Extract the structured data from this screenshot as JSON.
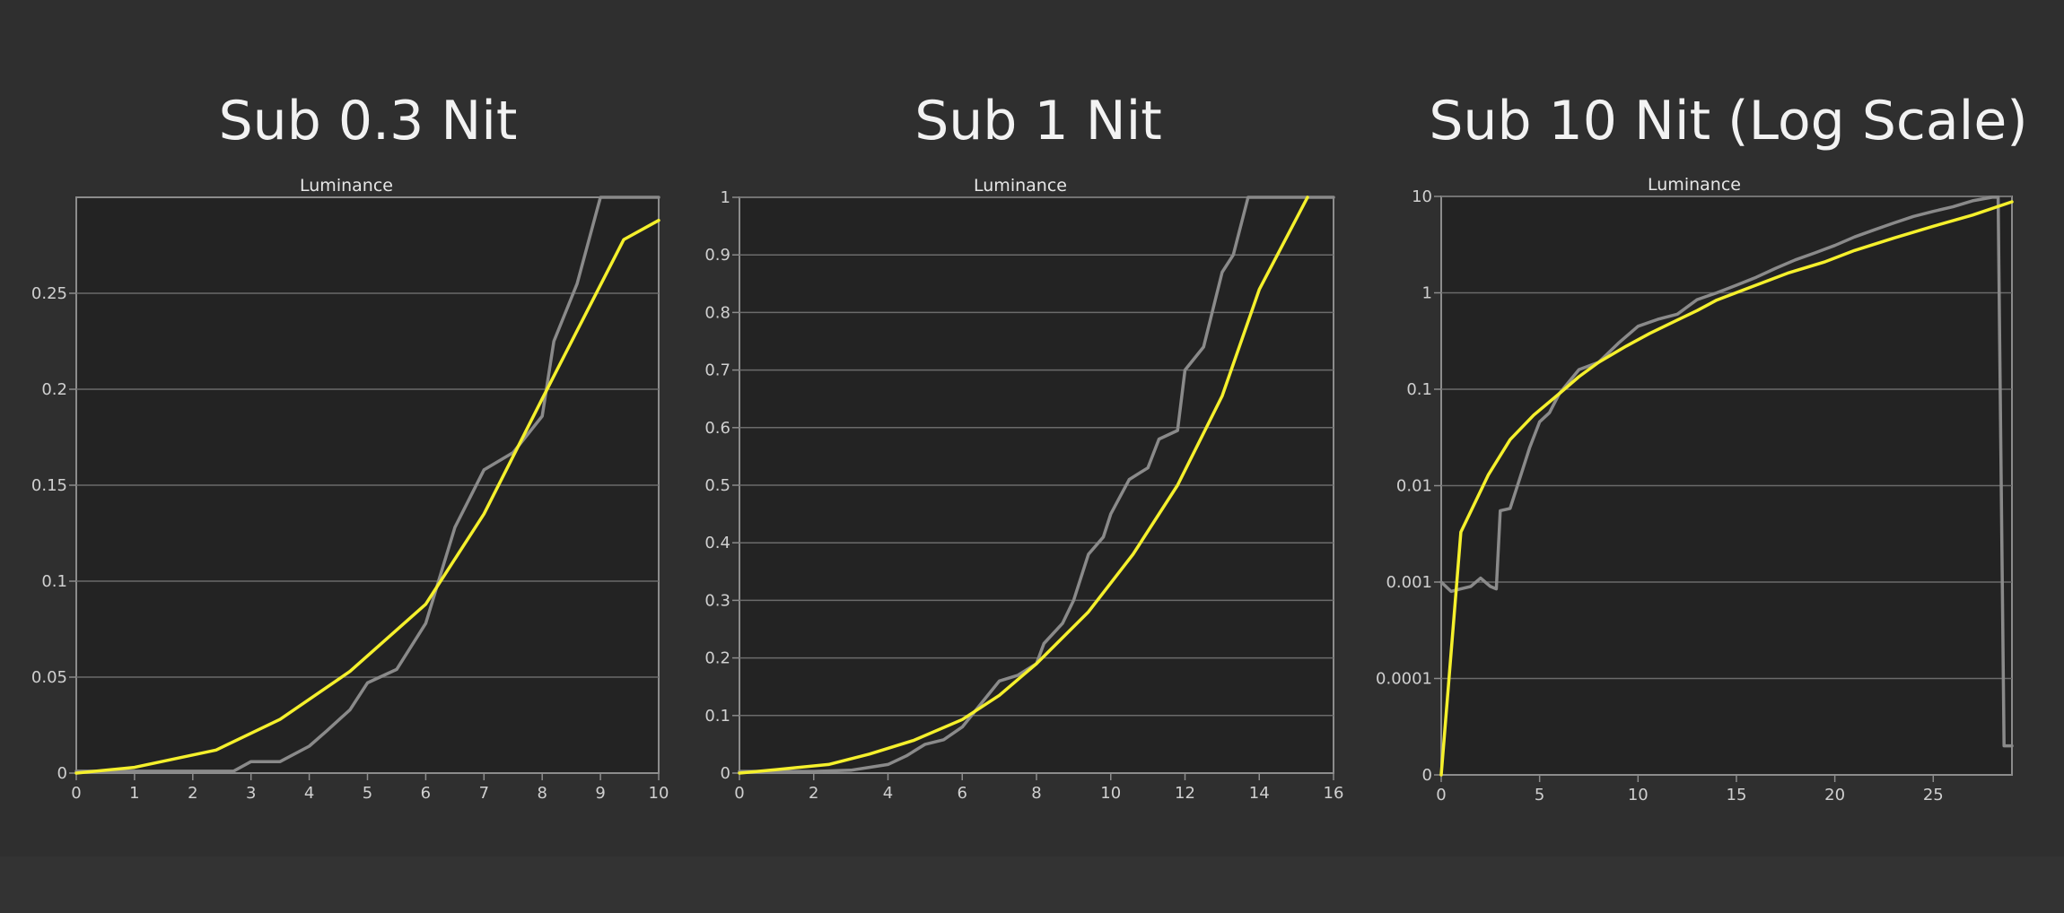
{
  "chart_data": [
    {
      "type": "line",
      "title": "Sub 0.3 Nit",
      "subtitle": "Luminance",
      "xlim": [
        0,
        10
      ],
      "ylim": [
        0,
        0.3
      ],
      "x_ticks": [
        0,
        1,
        2,
        3,
        4,
        5,
        6,
        7,
        8,
        9,
        10
      ],
      "x_tick_labels": [
        "0",
        "1",
        "2",
        "3",
        "4",
        "5",
        "6",
        "7",
        "8",
        "9",
        "10"
      ],
      "y_ticks": [
        0,
        0.05,
        0.1,
        0.15,
        0.2,
        0.25
      ],
      "y_tick_labels": [
        "0",
        "0.05",
        "0.1",
        "0.15",
        "0.2",
        "0.25"
      ],
      "grid": true,
      "series": [
        {
          "color": "#8a8a8a",
          "points": [
            [
              0,
              0.001
            ],
            [
              0.5,
              0.001
            ],
            [
              1,
              0.001
            ],
            [
              1.5,
              0.001
            ],
            [
              2,
              0.001
            ],
            [
              2.7,
              0.001
            ],
            [
              3,
              0.006
            ],
            [
              3.5,
              0.006
            ],
            [
              4,
              0.014
            ],
            [
              4.3,
              0.022
            ],
            [
              4.7,
              0.033
            ],
            [
              5,
              0.047
            ],
            [
              5.5,
              0.054
            ],
            [
              6,
              0.078
            ],
            [
              6.5,
              0.128
            ],
            [
              7,
              0.158
            ],
            [
              7.5,
              0.167
            ],
            [
              8,
              0.186
            ],
            [
              8.2,
              0.225
            ],
            [
              8.6,
              0.255
            ],
            [
              9,
              0.3
            ],
            [
              10,
              0.3
            ]
          ]
        },
        {
          "color": "#f5f02c",
          "points": [
            [
              0,
              0
            ],
            [
              1,
              0.003
            ],
            [
              2.4,
              0.012
            ],
            [
              3.5,
              0.028
            ],
            [
              4.7,
              0.053
            ],
            [
              6,
              0.088
            ],
            [
              7,
              0.135
            ],
            [
              8,
              0.195
            ],
            [
              9.4,
              0.278
            ],
            [
              10,
              0.288
            ]
          ]
        }
      ]
    },
    {
      "type": "line",
      "title": "Sub 1 Nit",
      "subtitle": "Luminance",
      "xlim": [
        0,
        16
      ],
      "ylim": [
        0,
        1
      ],
      "x_ticks": [
        0,
        2,
        4,
        6,
        8,
        10,
        12,
        14,
        16
      ],
      "x_tick_labels": [
        "0",
        "2",
        "4",
        "6",
        "8",
        "10",
        "12",
        "14",
        "16"
      ],
      "y_ticks": [
        0,
        0.1,
        0.2,
        0.3,
        0.4,
        0.5,
        0.6,
        0.7,
        0.8,
        0.9,
        1
      ],
      "y_tick_labels": [
        "0",
        "0.1",
        "0.2",
        "0.3",
        "0.4",
        "0.5",
        "0.6",
        "0.7",
        "0.8",
        "0.9",
        "1"
      ],
      "grid": true,
      "series": [
        {
          "color": "#8a8a8a",
          "points": [
            [
              0,
              0.003
            ],
            [
              2,
              0.003
            ],
            [
              3,
              0.005
            ],
            [
              3.5,
              0.01
            ],
            [
              4,
              0.015
            ],
            [
              4.5,
              0.03
            ],
            [
              5,
              0.05
            ],
            [
              5.5,
              0.058
            ],
            [
              6,
              0.08
            ],
            [
              6.5,
              0.12
            ],
            [
              7,
              0.16
            ],
            [
              7.5,
              0.17
            ],
            [
              8,
              0.19
            ],
            [
              8.2,
              0.225
            ],
            [
              8.7,
              0.26
            ],
            [
              9,
              0.3
            ],
            [
              9.4,
              0.38
            ],
            [
              9.8,
              0.41
            ],
            [
              10,
              0.45
            ],
            [
              10.5,
              0.51
            ],
            [
              11,
              0.53
            ],
            [
              11.3,
              0.58
            ],
            [
              11.8,
              0.595
            ],
            [
              12,
              0.7
            ],
            [
              12.5,
              0.74
            ],
            [
              13,
              0.87
            ],
            [
              13.3,
              0.9
            ],
            [
              13.7,
              1
            ],
            [
              16,
              1
            ]
          ]
        },
        {
          "color": "#f5f02c",
          "points": [
            [
              0,
              0
            ],
            [
              1,
              0.006
            ],
            [
              2.4,
              0.015
            ],
            [
              3.5,
              0.033
            ],
            [
              4.7,
              0.057
            ],
            [
              6,
              0.093
            ],
            [
              7,
              0.135
            ],
            [
              8,
              0.19
            ],
            [
              9.4,
              0.28
            ],
            [
              10.6,
              0.38
            ],
            [
              11.8,
              0.5
            ],
            [
              13,
              0.655
            ],
            [
              14,
              0.84
            ],
            [
              15.3,
              1
            ]
          ]
        }
      ]
    },
    {
      "type": "line",
      "title": "Sub 10 Nit (Log Scale)",
      "subtitle": "Luminance",
      "log_y": true,
      "xlim": [
        0,
        29
      ],
      "ylim": [
        0,
        10
      ],
      "x_ticks": [
        0,
        5,
        10,
        15,
        20,
        25
      ],
      "x_tick_labels": [
        "0",
        "5",
        "10",
        "15",
        "20",
        "25"
      ],
      "y_ticks": [
        0,
        0.0001,
        0.001,
        0.01,
        0.1,
        1,
        10
      ],
      "y_tick_labels": [
        "0",
        "0.0001",
        "0.001",
        "0.01",
        "0.1",
        "1",
        "10"
      ],
      "grid": true,
      "series": [
        {
          "color": "#8a8a8a",
          "points": [
            [
              0,
              0.001
            ],
            [
              0.5,
              0.0008
            ],
            [
              1,
              0.00085
            ],
            [
              1.5,
              0.0009
            ],
            [
              2,
              0.0011
            ],
            [
              2.5,
              0.0009
            ],
            [
              2.8,
              0.00085
            ],
            [
              3,
              0.0055
            ],
            [
              3.5,
              0.0058
            ],
            [
              4,
              0.012
            ],
            [
              4.5,
              0.025
            ],
            [
              5,
              0.046
            ],
            [
              5.5,
              0.057
            ],
            [
              6,
              0.09
            ],
            [
              7,
              0.16
            ],
            [
              8,
              0.19
            ],
            [
              9,
              0.3
            ],
            [
              10,
              0.45
            ],
            [
              11,
              0.53
            ],
            [
              12,
              0.6
            ],
            [
              13,
              0.85
            ],
            [
              14,
              1.0
            ],
            [
              15,
              1.2
            ],
            [
              16,
              1.45
            ],
            [
              17,
              1.8
            ],
            [
              18,
              2.2
            ],
            [
              19,
              2.6
            ],
            [
              20,
              3.1
            ],
            [
              21,
              3.8
            ],
            [
              22,
              4.5
            ],
            [
              23,
              5.3
            ],
            [
              24,
              6.2
            ],
            [
              25,
              7.0
            ],
            [
              26,
              7.8
            ],
            [
              27,
              9.0
            ],
            [
              28,
              9.8
            ],
            [
              28.3,
              9.8
            ],
            [
              28.6,
              2e-05
            ],
            [
              29,
              2e-05
            ]
          ]
        },
        {
          "color": "#f5f02c",
          "points": [
            [
              0,
              0
            ],
            [
              1,
              0.0033
            ],
            [
              2.4,
              0.013
            ],
            [
              3.5,
              0.03
            ],
            [
              4.7,
              0.054
            ],
            [
              6,
              0.09
            ],
            [
              7,
              0.135
            ],
            [
              8,
              0.19
            ],
            [
              9.4,
              0.28
            ],
            [
              10.6,
              0.38
            ],
            [
              11.8,
              0.5
            ],
            [
              13,
              0.655
            ],
            [
              14,
              0.84
            ],
            [
              15.3,
              1.06
            ],
            [
              17.6,
              1.6
            ],
            [
              19.5,
              2.1
            ],
            [
              21,
              2.75
            ],
            [
              23,
              3.7
            ],
            [
              25,
              4.9
            ],
            [
              27,
              6.4
            ],
            [
              29,
              8.8
            ]
          ]
        }
      ]
    }
  ]
}
